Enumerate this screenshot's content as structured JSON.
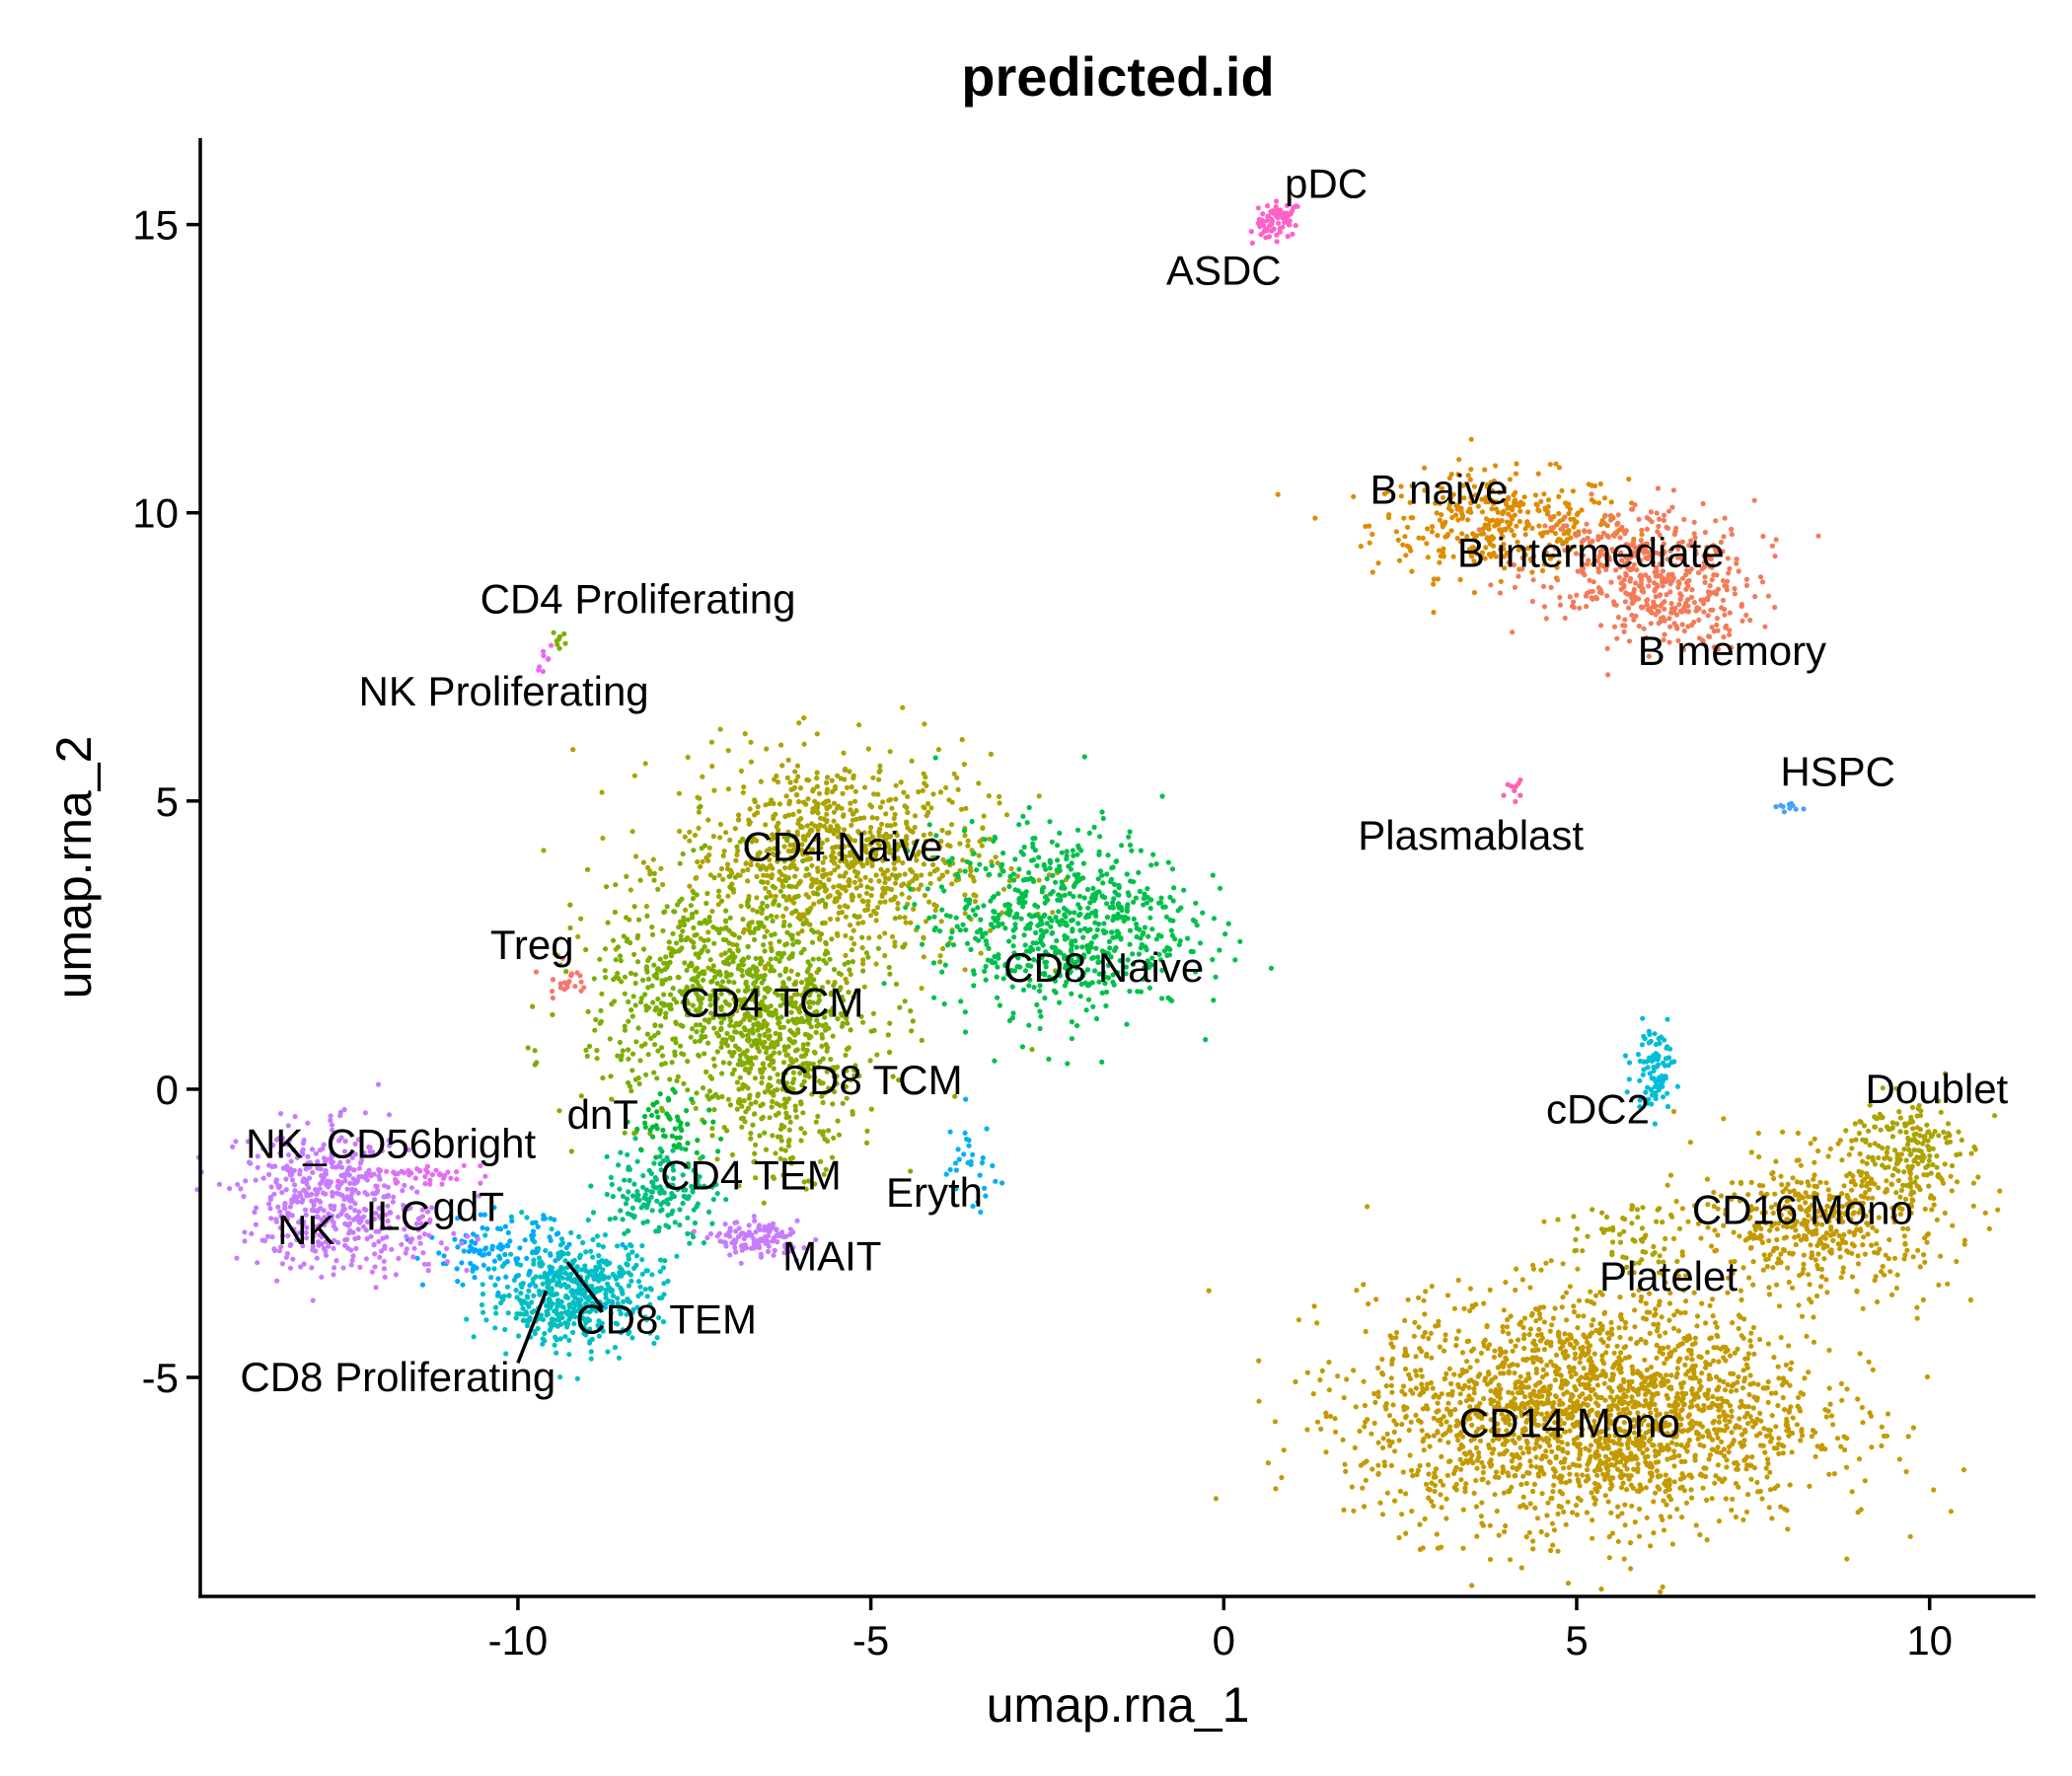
{
  "chart_data": {
    "type": "scatter",
    "title": "predicted.id",
    "xlabel": "umap.rna_1",
    "ylabel": "umap.rna_2",
    "xlim": [
      -14.5,
      11.5
    ],
    "ylim": [
      -8.8,
      16.5
    ],
    "xticks": [
      -10,
      -5,
      0,
      5,
      10
    ],
    "yticks": [
      -5,
      0,
      5,
      10,
      15
    ],
    "xtick_labels": [
      "-10",
      "-5",
      "0",
      "5",
      "10"
    ],
    "ytick_labels": [
      "-5",
      "0",
      "5",
      "10",
      "15"
    ],
    "grid": false,
    "legend": "none",
    "clusters": [
      {
        "name": "pDC",
        "color": "#FF61C9",
        "center": [
          0.8,
          15.1
        ],
        "spread": [
          0.15,
          0.15
        ],
        "n": 60
      },
      {
        "name": "ASDC",
        "color": "#FF61C9",
        "center": [
          0.5,
          14.8
        ],
        "spread": [
          0.1,
          0.1
        ],
        "n": 8
      },
      {
        "name": "B naive",
        "color": "#DE8C00",
        "center": [
          3.9,
          9.8
        ],
        "spread": [
          0.9,
          0.45
        ],
        "n": 350
      },
      {
        "name": "B intermediate",
        "color": "#F37B59",
        "center": [
          5.9,
          9.2
        ],
        "spread": [
          0.8,
          0.5
        ],
        "n": 300
      },
      {
        "name": "B memory",
        "color": "#F37B59",
        "center": [
          6.3,
          8.4
        ],
        "spread": [
          0.6,
          0.4
        ],
        "n": 200
      },
      {
        "name": "Plasmablast",
        "color": "#FF64B0",
        "center": [
          4.1,
          5.2
        ],
        "spread": [
          0.06,
          0.08
        ],
        "n": 10
      },
      {
        "name": "HSPC",
        "color": "#4B9FFF",
        "center": [
          8.0,
          4.9
        ],
        "spread": [
          0.1,
          0.04
        ],
        "n": 10
      },
      {
        "name": "CD4 Proliferating",
        "color": "#7CAE00",
        "center": [
          -9.4,
          7.8
        ],
        "spread": [
          0.05,
          0.1
        ],
        "n": 8
      },
      {
        "name": "NK Proliferating",
        "color": "#E76BF3",
        "center": [
          -9.6,
          7.5
        ],
        "spread": [
          0.07,
          0.12
        ],
        "n": 8
      },
      {
        "name": "CD4 Naive",
        "color": "#ABA300",
        "center": [
          -5.5,
          4.0
        ],
        "spread": [
          1.1,
          0.9
        ],
        "n": 900
      },
      {
        "name": "CD8 Naive",
        "color": "#00C04B",
        "center": [
          -2.3,
          2.9
        ],
        "spread": [
          0.9,
          0.8
        ],
        "n": 700
      },
      {
        "name": "Treg",
        "color": "#F8766D",
        "center": [
          -9.3,
          1.9
        ],
        "spread": [
          0.15,
          0.15
        ],
        "n": 20
      },
      {
        "name": "CD4 TCM",
        "color": "#7CAE00",
        "center": [
          -7.0,
          1.6
        ],
        "spread": [
          1.0,
          1.0
        ],
        "n": 900
      },
      {
        "name": "CD8 TCM",
        "color": "#8FAA00",
        "center": [
          -6.2,
          0.2
        ],
        "spread": [
          0.5,
          0.8
        ],
        "n": 300
      },
      {
        "name": "dnT",
        "color": "#00BA38",
        "center": [
          -7.8,
          -0.6
        ],
        "spread": [
          0.3,
          0.3
        ],
        "n": 60
      },
      {
        "name": "CD4 TEM",
        "color": "#00BF7D",
        "center": [
          -8.0,
          -1.8
        ],
        "spread": [
          0.4,
          0.4
        ],
        "n": 150
      },
      {
        "name": "CD8 TEM",
        "color": "#00BFC4",
        "center": [
          -9.2,
          -3.5
        ],
        "spread": [
          0.6,
          0.45
        ],
        "n": 500
      },
      {
        "name": "CD8 Proliferating",
        "color": "#00C0B8",
        "center": [
          -9.5,
          -3.9
        ],
        "spread": [
          0.3,
          0.2
        ],
        "n": 40
      },
      {
        "name": "MAIT",
        "color": "#C77CFF",
        "center": [
          -6.6,
          -2.6
        ],
        "spread": [
          0.3,
          0.15
        ],
        "n": 120
      },
      {
        "name": "gdT",
        "color": "#00A9FF",
        "center": [
          -10.3,
          -2.8
        ],
        "spread": [
          0.5,
          0.3
        ],
        "n": 100
      },
      {
        "name": "Eryth",
        "color": "#00B0F6",
        "center": [
          -3.6,
          -1.3
        ],
        "spread": [
          0.2,
          0.4
        ],
        "n": 30
      },
      {
        "name": "NK",
        "color": "#C77CFF",
        "center": [
          -12.7,
          -1.9
        ],
        "spread": [
          0.6,
          0.6
        ],
        "n": 450
      },
      {
        "name": "ILC",
        "color": "#D575FE",
        "center": [
          -11.6,
          -2.6
        ],
        "spread": [
          0.5,
          0.35
        ],
        "n": 60
      },
      {
        "name": "NK_CD56bright",
        "color": "#E76BF3",
        "center": [
          -11.3,
          -1.5
        ],
        "spread": [
          0.4,
          0.1
        ],
        "n": 40
      },
      {
        "name": "cDC2",
        "color": "#00BCD8",
        "center": [
          6.1,
          0.4
        ],
        "spread": [
          0.15,
          0.35
        ],
        "n": 90
      },
      {
        "name": "Doublet",
        "color": "#ABA300",
        "center": [
          9.6,
          -1.0
        ],
        "spread": [
          0.4,
          0.45
        ],
        "n": 180
      },
      {
        "name": "CD16 Mono",
        "color": "#C49A00",
        "center": [
          8.5,
          -2.3
        ],
        "spread": [
          0.9,
          0.6
        ],
        "n": 500
      },
      {
        "name": "Platelet",
        "color": "#ABA300",
        "center": [
          5.7,
          -2.6
        ],
        "spread": [
          0.4,
          0.3
        ],
        "n": 60
      },
      {
        "name": "CD14 Mono",
        "color": "#C49A00",
        "center": [
          5.2,
          -5.6
        ],
        "spread": [
          1.6,
          1.0
        ],
        "n": 2200
      }
    ],
    "labels": [
      {
        "text": "pDC",
        "x": 1.45,
        "y": 15.7
      },
      {
        "text": "ASDC",
        "x": 0.0,
        "y": 14.2
      },
      {
        "text": "B naive",
        "x": 3.05,
        "y": 10.4
      },
      {
        "text": "B intermediate",
        "x": 5.2,
        "y": 9.3
      },
      {
        "text": "B memory",
        "x": 7.2,
        "y": 7.6
      },
      {
        "text": "HSPC",
        "x": 8.7,
        "y": 5.5
      },
      {
        "text": "Plasmablast",
        "x": 3.5,
        "y": 4.4
      },
      {
        "text": "CD4 Proliferating",
        "x": -8.3,
        "y": 8.5
      },
      {
        "text": "NK Proliferating",
        "x": -10.2,
        "y": 6.9
      },
      {
        "text": "CD4 Naive",
        "x": -5.4,
        "y": 4.2
      },
      {
        "text": "CD8 Naive",
        "x": -1.7,
        "y": 2.1
      },
      {
        "text": "Treg",
        "x": -9.8,
        "y": 2.5
      },
      {
        "text": "CD4 TCM",
        "x": -6.4,
        "y": 1.5
      },
      {
        "text": "CD8 TCM",
        "x": -5.0,
        "y": 0.15
      },
      {
        "text": "dnT",
        "x": -8.8,
        "y": -0.45
      },
      {
        "text": "CD4 TEM",
        "x": -6.7,
        "y": -1.5
      },
      {
        "text": "Eryth",
        "x": -4.1,
        "y": -1.8
      },
      {
        "text": "MAIT",
        "x": -5.55,
        "y": -2.9
      },
      {
        "text": "NK_CD56bright",
        "x": -11.8,
        "y": -0.95
      },
      {
        "text": "NK",
        "x": -13.0,
        "y": -2.45
      },
      {
        "text": "ILC",
        "x": -11.7,
        "y": -2.2
      },
      {
        "text": "gdT",
        "x": -10.7,
        "y": -2.05
      },
      {
        "text": "CD8 TEM",
        "x": -7.9,
        "y": -4.0
      },
      {
        "text": "CD8 Proliferating",
        "x": -11.7,
        "y": -5.0
      },
      {
        "text": "cDC2",
        "x": 5.3,
        "y": -0.35
      },
      {
        "text": "Doublet",
        "x": 10.1,
        "y": 0.0
      },
      {
        "text": "CD16 Mono",
        "x": 8.2,
        "y": -2.1
      },
      {
        "text": "Platelet",
        "x": 6.3,
        "y": -3.25
      },
      {
        "text": "CD14 Mono",
        "x": 4.9,
        "y": -5.8
      }
    ],
    "leaders": [
      {
        "label": "CD8 Proliferating",
        "from": [
          -10.0,
          -4.75
        ],
        "to": [
          -9.6,
          -3.5
        ]
      },
      {
        "label": "CD8 TEM",
        "from": [
          -8.8,
          -3.8
        ],
        "to": [
          -9.3,
          -3.0
        ]
      }
    ]
  }
}
